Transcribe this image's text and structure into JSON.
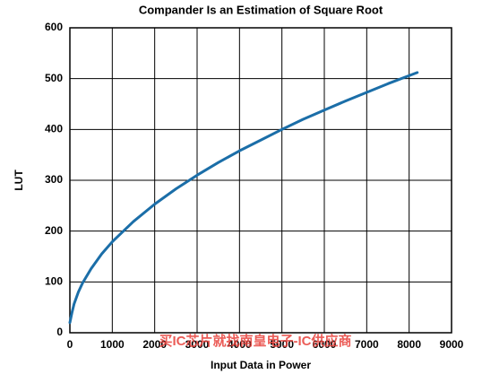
{
  "chart_data": {
    "type": "line",
    "title": "Compander Is an Estimation of Square Root",
    "x_label": "Input Data in Power",
    "y_label": "LUT",
    "annotation": "买IC芯片就找南皇电子-IC供应商",
    "x": [
      0,
      50,
      100,
      200,
      300,
      500,
      750,
      1000,
      1500,
      2000,
      2500,
      3000,
      3500,
      4000,
      4500,
      5000,
      5500,
      6000,
      6500,
      7000,
      7500,
      8192
    ],
    "series": [
      {
        "color": "#1b6ea8",
        "values": [
          20,
          40,
          57,
          80,
          98,
          126,
          155,
          179,
          219,
          253,
          283,
          310,
          335,
          358,
          379,
          400,
          420,
          438,
          456,
          473,
          490,
          512
        ]
      }
    ],
    "xlim": [
      0,
      9000
    ],
    "xticks": [
      0,
      1000,
      2000,
      3000,
      4000,
      5000,
      6000,
      7000,
      8000,
      9000
    ],
    "ylim": [
      0,
      600
    ],
    "yticks": [
      0,
      100,
      200,
      300,
      400,
      500,
      600
    ],
    "grid": true
  }
}
